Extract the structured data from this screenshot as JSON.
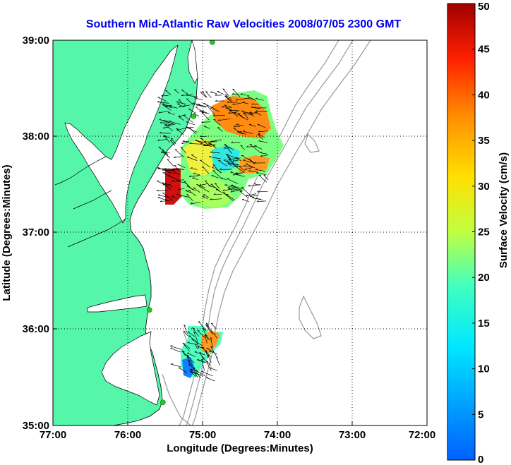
{
  "title": "Southern Mid-Atlantic Raw Velocities 2008/07/05 2300 GMT",
  "x_axis": {
    "label": "Longitude (Degrees:Minutes)",
    "ticks": [
      "77:00",
      "76:00",
      "75:00",
      "74:00",
      "73:00",
      "72:00"
    ]
  },
  "y_axis": {
    "label": "Latitude (Degrees:Minutes)",
    "ticks": [
      "39:00",
      "38:00",
      "37:00",
      "36:00",
      "35:00"
    ]
  },
  "colorbar": {
    "label": "Surface Velocity (cm/s)",
    "ticks": [
      "0",
      "5",
      "10",
      "15",
      "20",
      "25",
      "30",
      "35",
      "40",
      "45",
      "50"
    ],
    "range": [
      0,
      50
    ],
    "colormap": "jet"
  },
  "colors": {
    "land": "#55f5aa",
    "land_outline": "#000000",
    "bathymetry": "#999999",
    "grid": "#000000",
    "station_marker": "#22cc22",
    "title": "#0000ee"
  },
  "map": {
    "lon_range": [
      -77,
      -72
    ],
    "lat_range": [
      35,
      39
    ],
    "grid": true,
    "stations": [
      {
        "lon": -74.87,
        "lat": 38.98
      },
      {
        "lon": -75.12,
        "lat": 38.21
      },
      {
        "lon": -75.71,
        "lat": 36.2
      },
      {
        "lon": -75.53,
        "lat": 35.24
      }
    ],
    "velocity_regions": [
      {
        "id": "north",
        "lon": [
          -75.5,
          -74.1
        ],
        "lat": [
          37.3,
          38.45
        ],
        "speed_range": [
          8,
          50
        ]
      },
      {
        "id": "south",
        "lon": [
          -75.3,
          -74.75
        ],
        "lat": [
          35.45,
          36.05
        ],
        "speed_range": [
          5,
          35
        ]
      }
    ]
  }
}
